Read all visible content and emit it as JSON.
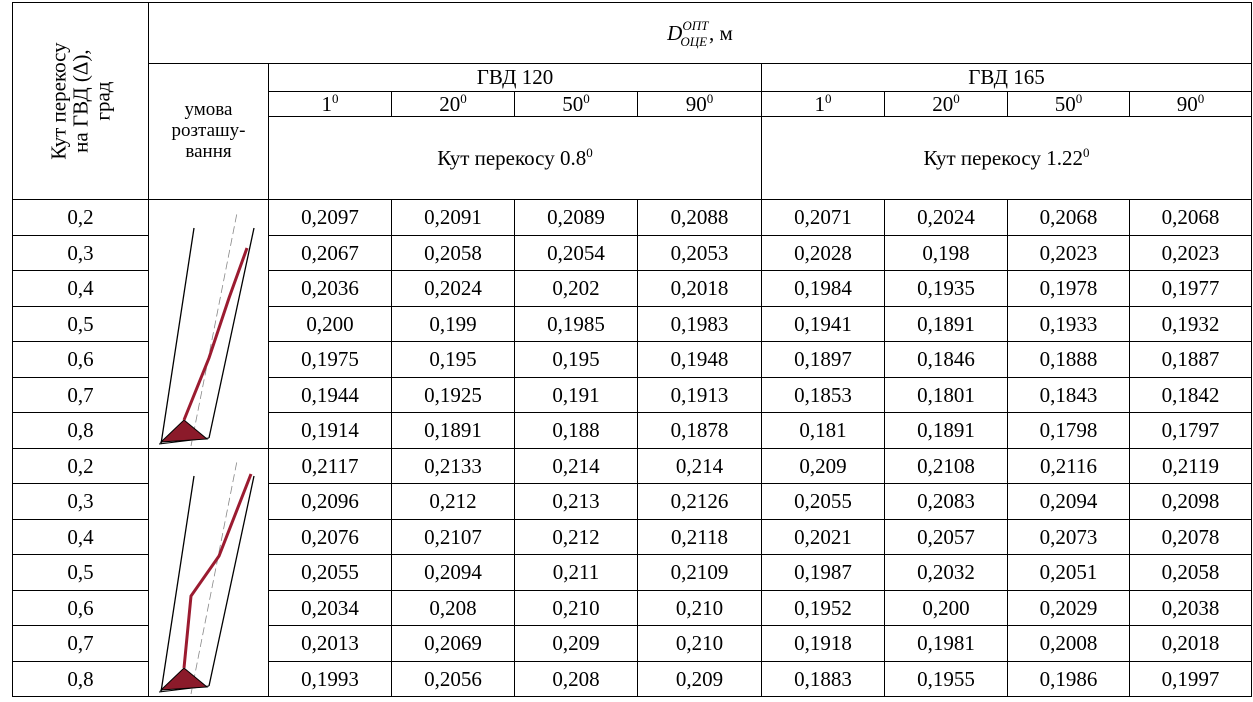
{
  "header": {
    "side_label": [
      "Кут перекосу",
      "на ГВД (Δ),",
      "град"
    ],
    "main": {
      "base": "D",
      "sup": "ОПТ",
      "sub": "ОЦЕ",
      "unit": ", м"
    },
    "condition": [
      "умова",
      "розташу-",
      "вання"
    ],
    "groups": [
      {
        "name": "ГВД 120",
        "angles": [
          {
            "base": "1",
            "sup": "0"
          },
          {
            "base": "20",
            "sup": "0"
          },
          {
            "base": "50",
            "sup": "0"
          },
          {
            "base": "90",
            "sup": "0"
          }
        ],
        "skew": {
          "text": "Кут перекосу 0.8",
          "sup": "0"
        }
      },
      {
        "name": "ГВД 165",
        "angles": [
          {
            "base": "1",
            "sup": "0"
          },
          {
            "base": "20",
            "sup": "0"
          },
          {
            "base": "50",
            "sup": "0"
          },
          {
            "base": "90",
            "sup": "0"
          }
        ],
        "skew": {
          "text": "Кут перекосу 1.22",
          "sup": "0"
        }
      }
    ]
  },
  "sections": [
    {
      "rows": [
        [
          "0,2",
          "0,2097",
          "0,2091",
          "0,2089",
          "0,2088",
          "0,2071",
          "0,2024",
          "0,2068",
          "0,2068"
        ],
        [
          "0,3",
          "0,2067",
          "0,2058",
          "0,2054",
          "0,2053",
          "0,2028",
          "0,198",
          "0,2023",
          "0,2023"
        ],
        [
          "0,4",
          "0,2036",
          "0,2024",
          "0,202",
          "0,2018",
          "0,1984",
          "0,1935",
          "0,1978",
          "0,1977"
        ],
        [
          "0,5",
          "0,200",
          "0,199",
          "0,1985",
          "0,1983",
          "0,1941",
          "0,1891",
          "0,1933",
          "0,1932"
        ],
        [
          "0,6",
          "0,1975",
          "0,195",
          "0,195",
          "0,1948",
          "0,1897",
          "0,1846",
          "0,1888",
          "0,1887"
        ],
        [
          "0,7",
          "0,1944",
          "0,1925",
          "0,191",
          "0,1913",
          "0,1853",
          "0,1801",
          "0,1843",
          "0,1842"
        ],
        [
          "0,8",
          "0,1914",
          "0,1891",
          "0,188",
          "0,1878",
          "0,181",
          "0,1891",
          "0,1798",
          "0,1797"
        ]
      ]
    },
    {
      "rows": [
        [
          "0,2",
          "0,2117",
          "0,2133",
          "0,214",
          "0,214",
          "0,209",
          "0,2108",
          "0,2116",
          "0,2119"
        ],
        [
          "0,3",
          "0,2096",
          "0,212",
          "0,213",
          "0,2126",
          "0,2055",
          "0,2083",
          "0,2094",
          "0,2098"
        ],
        [
          "0,4",
          "0,2076",
          "0,2107",
          "0,212",
          "0,2118",
          "0,2021",
          "0,2057",
          "0,2073",
          "0,2078"
        ],
        [
          "0,5",
          "0,2055",
          "0,2094",
          "0,211",
          "0,2109",
          "0,1987",
          "0,2032",
          "0,2051",
          "0,2058"
        ],
        [
          "0,6",
          "0,2034",
          "0,208",
          "0,210",
          "0,210",
          "0,1952",
          "0,200",
          "0,2029",
          "0,2038"
        ],
        [
          "0,7",
          "0,2013",
          "0,2069",
          "0,209",
          "0,210",
          "0,1918",
          "0,1981",
          "0,2008",
          "0,2018"
        ],
        [
          "0,8",
          "0,1993",
          "0,2056",
          "0,208",
          "0,209",
          "0,1883",
          "0,1955",
          "0,1986",
          "0,1997"
        ]
      ]
    }
  ]
}
